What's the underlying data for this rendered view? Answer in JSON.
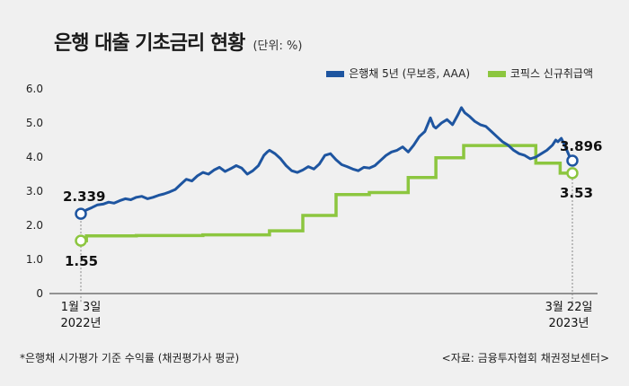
{
  "header": {
    "title": "은행 대출 기초금리 현황",
    "unit": "(단위: %)"
  },
  "legend": {
    "bond_label": "은행채 5년 (무보증, AAA)",
    "kofix_label": "코픽스 신규취급액"
  },
  "colors": {
    "bond": "#1e55a0",
    "kofix": "#8cc63f",
    "axis": "#333333",
    "background": "#f0f0f0"
  },
  "footer": {
    "note": "*은행채 시가평가 기준 수익률 (채권평가사 평균)",
    "source": "<자료: 금융투자협회 채권정보센터>"
  },
  "chart_data": {
    "type": "line",
    "title": "은행 대출 기초금리 현황",
    "unit": "(단위: %)",
    "ylim": [
      0,
      6
    ],
    "yticks": [
      "6.0",
      "5.0",
      "4.0",
      "3.0",
      "2.0",
      "1.0",
      "0"
    ],
    "xlim": [
      0,
      443
    ],
    "x_labels": {
      "start_line1": "1월 3일",
      "start_line2": "2022년",
      "end_line1": "3월 22일",
      "end_line2": "2023년"
    },
    "grid": false,
    "legend_position": "top-right",
    "series": [
      {
        "name": "은행채 5년 (무보증, AAA)",
        "points": [
          [
            0,
            2.339
          ],
          [
            5,
            2.45
          ],
          [
            10,
            2.52
          ],
          [
            15,
            2.6
          ],
          [
            20,
            2.62
          ],
          [
            25,
            2.68
          ],
          [
            30,
            2.65
          ],
          [
            35,
            2.72
          ],
          [
            40,
            2.78
          ],
          [
            45,
            2.75
          ],
          [
            50,
            2.82
          ],
          [
            55,
            2.85
          ],
          [
            60,
            2.78
          ],
          [
            65,
            2.82
          ],
          [
            70,
            2.88
          ],
          [
            75,
            2.92
          ],
          [
            80,
            2.98
          ],
          [
            85,
            3.05
          ],
          [
            90,
            3.2
          ],
          [
            95,
            3.35
          ],
          [
            100,
            3.3
          ],
          [
            105,
            3.45
          ],
          [
            110,
            3.55
          ],
          [
            115,
            3.5
          ],
          [
            120,
            3.62
          ],
          [
            125,
            3.7
          ],
          [
            130,
            3.58
          ],
          [
            135,
            3.66
          ],
          [
            140,
            3.75
          ],
          [
            145,
            3.68
          ],
          [
            150,
            3.5
          ],
          [
            155,
            3.6
          ],
          [
            160,
            3.75
          ],
          [
            165,
            4.05
          ],
          [
            168,
            4.15
          ],
          [
            170,
            4.2
          ],
          [
            175,
            4.1
          ],
          [
            180,
            3.95
          ],
          [
            185,
            3.75
          ],
          [
            190,
            3.6
          ],
          [
            195,
            3.55
          ],
          [
            200,
            3.62
          ],
          [
            205,
            3.72
          ],
          [
            210,
            3.65
          ],
          [
            215,
            3.8
          ],
          [
            220,
            4.05
          ],
          [
            225,
            4.1
          ],
          [
            230,
            3.92
          ],
          [
            235,
            3.78
          ],
          [
            240,
            3.72
          ],
          [
            245,
            3.65
          ],
          [
            250,
            3.6
          ],
          [
            255,
            3.7
          ],
          [
            260,
            3.68
          ],
          [
            265,
            3.75
          ],
          [
            270,
            3.9
          ],
          [
            275,
            4.05
          ],
          [
            280,
            4.15
          ],
          [
            285,
            4.2
          ],
          [
            290,
            4.3
          ],
          [
            295,
            4.15
          ],
          [
            300,
            4.35
          ],
          [
            305,
            4.6
          ],
          [
            310,
            4.75
          ],
          [
            315,
            5.15
          ],
          [
            318,
            4.9
          ],
          [
            320,
            4.85
          ],
          [
            325,
            5.0
          ],
          [
            330,
            5.1
          ],
          [
            335,
            4.95
          ],
          [
            340,
            5.25
          ],
          [
            343,
            5.45
          ],
          [
            346,
            5.3
          ],
          [
            350,
            5.2
          ],
          [
            355,
            5.05
          ],
          [
            360,
            4.95
          ],
          [
            365,
            4.9
          ],
          [
            370,
            4.75
          ],
          [
            375,
            4.6
          ],
          [
            380,
            4.45
          ],
          [
            385,
            4.35
          ],
          [
            390,
            4.2
          ],
          [
            395,
            4.1
          ],
          [
            400,
            4.05
          ],
          [
            405,
            3.95
          ],
          [
            410,
            4.0
          ],
          [
            415,
            4.1
          ],
          [
            420,
            4.2
          ],
          [
            425,
            4.35
          ],
          [
            428,
            4.5
          ],
          [
            430,
            4.45
          ],
          [
            433,
            4.55
          ],
          [
            436,
            4.35
          ],
          [
            440,
            4.05
          ],
          [
            443,
            3.896
          ]
        ],
        "first_label": "2.339",
        "last_label": "3.896"
      },
      {
        "name": "코픽스 신규취급액",
        "points": [
          [
            0,
            1.55
          ],
          [
            5,
            1.55
          ],
          [
            5,
            1.69
          ],
          [
            50,
            1.69
          ],
          [
            50,
            1.7
          ],
          [
            110,
            1.7
          ],
          [
            110,
            1.72
          ],
          [
            170,
            1.72
          ],
          [
            170,
            1.84
          ],
          [
            200,
            1.84
          ],
          [
            200,
            2.29
          ],
          [
            230,
            2.29
          ],
          [
            230,
            2.9
          ],
          [
            260,
            2.9
          ],
          [
            260,
            2.96
          ],
          [
            295,
            2.96
          ],
          [
            295,
            3.4
          ],
          [
            320,
            3.4
          ],
          [
            320,
            3.98
          ],
          [
            345,
            3.98
          ],
          [
            345,
            4.34
          ],
          [
            410,
            4.34
          ],
          [
            410,
            3.82
          ],
          [
            432,
            3.82
          ],
          [
            432,
            3.53
          ],
          [
            443,
            3.53
          ]
        ],
        "first_label": "1.55",
        "last_label": "3.53"
      }
    ]
  }
}
